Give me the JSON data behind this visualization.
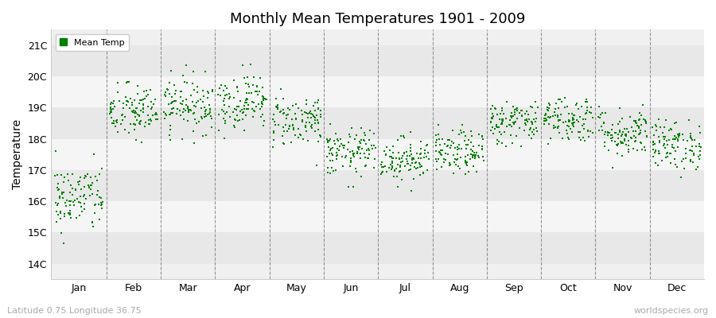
{
  "title": "Monthly Mean Temperatures 1901 - 2009",
  "ylabel": "Temperature",
  "xlabel_bottom_left": "Latitude 0.75 Longitude 36.75",
  "xlabel_bottom_right": "worldspecies.org",
  "legend_label": "Mean Temp",
  "marker_color": "#008000",
  "background_color": "#f0f0f0",
  "stripe_colors": [
    "#e8e8e8",
    "#f5f5f5"
  ],
  "ytick_labels": [
    "14C",
    "15C",
    "16C",
    "17C",
    "18C",
    "19C",
    "20C",
    "21C"
  ],
  "ytick_values": [
    14,
    15,
    16,
    17,
    18,
    19,
    20,
    21
  ],
  "ylim": [
    13.5,
    21.5
  ],
  "months": [
    "Jan",
    "Feb",
    "Mar",
    "Apr",
    "May",
    "Jun",
    "Jul",
    "Aug",
    "Sep",
    "Oct",
    "Nov",
    "Dec"
  ],
  "month_means": [
    16.1,
    18.85,
    19.1,
    19.2,
    18.6,
    17.55,
    17.35,
    17.55,
    18.55,
    18.65,
    18.2,
    17.8
  ],
  "month_stds": [
    0.35,
    0.4,
    0.4,
    0.42,
    0.45,
    0.38,
    0.35,
    0.35,
    0.35,
    0.38,
    0.38,
    0.38
  ],
  "month_spread": [
    0.55,
    0.45,
    0.45,
    0.45,
    0.42,
    0.38,
    0.35,
    0.35,
    0.35,
    0.38,
    0.4,
    0.4
  ],
  "n_years": 109,
  "seed": 42,
  "figsize": [
    9.0,
    4.0
  ],
  "dpi": 100
}
